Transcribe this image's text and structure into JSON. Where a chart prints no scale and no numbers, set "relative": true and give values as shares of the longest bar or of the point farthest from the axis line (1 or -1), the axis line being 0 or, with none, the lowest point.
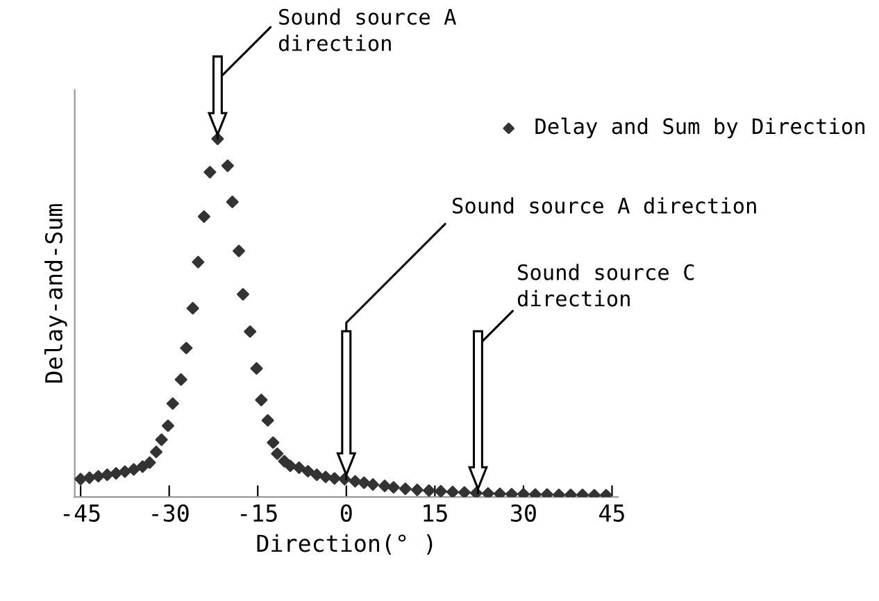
{
  "chart_data": {
    "type": "scatter",
    "relative": true,
    "xlabel": "Direction(° )",
    "ylabel": "Delay-and-Sum",
    "xlim": [
      -46,
      46
    ],
    "xticks": [
      -45,
      -30,
      -15,
      0,
      15,
      30,
      45
    ],
    "tick_labels": "x",
    "grid": false,
    "legend": "top right",
    "marker": "diamond",
    "series": [
      {
        "name": "Delay and Sum by Direction",
        "color": "#333333",
        "x": [
          -45,
          -43.5,
          -42,
          -40.5,
          -39,
          -37.5,
          -36,
          -34.5,
          -33.3,
          -32.2,
          -31.3,
          -30.2,
          -29.4,
          -28,
          -27.1,
          -26,
          -25.1,
          -24.1,
          -23.1,
          -21.8,
          -20.1,
          -19.3,
          -18.2,
          -17.5,
          -16.3,
          -15.2,
          -14.4,
          -13.3,
          -12.4,
          -11.7,
          -10.5,
          -9.5,
          -8,
          -6.5,
          -5,
          -3.5,
          -2,
          -0.3,
          1.5,
          3,
          4.5,
          6.5,
          8,
          10,
          12,
          14,
          16,
          18,
          20,
          22,
          24,
          26,
          28,
          30,
          32,
          34,
          36,
          38,
          40,
          42,
          44
        ],
        "values": [
          0.05,
          0.054,
          0.058,
          0.062,
          0.066,
          0.071,
          0.077,
          0.085,
          0.096,
          0.126,
          0.16,
          0.199,
          0.261,
          0.328,
          0.416,
          0.527,
          0.656,
          0.783,
          0.907,
          1.0,
          0.925,
          0.824,
          0.687,
          0.566,
          0.462,
          0.359,
          0.271,
          0.214,
          0.152,
          0.121,
          0.1,
          0.087,
          0.082,
          0.072,
          0.062,
          0.056,
          0.052,
          0.05,
          0.044,
          0.04,
          0.035,
          0.031,
          0.027,
          0.023,
          0.02,
          0.018,
          0.016,
          0.014,
          0.013,
          0.011,
          0.01,
          0.009,
          0.008,
          0.008,
          0.007,
          0.007,
          0.006,
          0.006,
          0.006,
          0.005,
          0.005
        ]
      }
    ],
    "annotations": [
      {
        "text": "Sound source A\ndirection",
        "x": -21.8,
        "y": 1.0
      },
      {
        "text": "Sound source A direction",
        "x": 0,
        "y": 0.05
      },
      {
        "text": "Sound source C\ndirection",
        "x": 22.3,
        "y": 0.011
      }
    ]
  }
}
